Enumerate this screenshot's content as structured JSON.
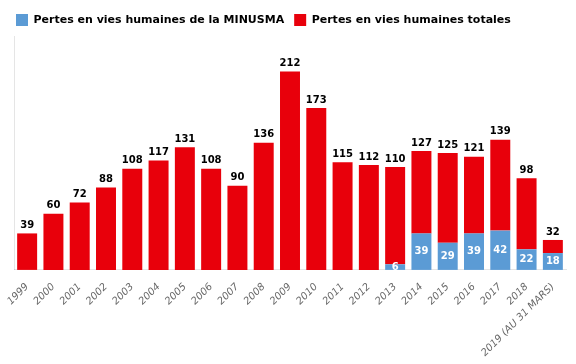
{
  "chart_data": {
    "type": "bar",
    "stacked": true,
    "categories": [
      "1999",
      "2000",
      "2001",
      "2002",
      "2003",
      "2004",
      "2005",
      "2006",
      "2007",
      "2008",
      "2009",
      "2010",
      "2011",
      "2012",
      "2013",
      "2014",
      "2015",
      "2016",
      "2017",
      "2018",
      "2019 (AU 31 MARS)"
    ],
    "series": [
      {
        "name": "Pertes en vies humaines de la MINUSMA",
        "color": "#5b9bd5",
        "values": [
          0,
          0,
          0,
          0,
          0,
          0,
          0,
          0,
          0,
          0,
          0,
          0,
          0,
          0,
          6,
          39,
          29,
          39,
          42,
          22,
          18
        ],
        "value_labels": [
          null,
          null,
          null,
          null,
          null,
          null,
          null,
          null,
          null,
          null,
          null,
          null,
          null,
          null,
          "6",
          "39",
          "29",
          "39",
          "42",
          "22",
          "18"
        ]
      },
      {
        "name": "Pertes en vies humaines totales",
        "color": "#e8000b",
        "values": [
          39,
          60,
          72,
          88,
          108,
          117,
          131,
          108,
          90,
          136,
          212,
          173,
          115,
          112,
          104,
          88,
          96,
          82,
          97,
          76,
          14
        ]
      }
    ],
    "totals": [
      39,
      60,
      72,
      88,
      108,
      117,
      131,
      108,
      90,
      136,
      212,
      173,
      115,
      112,
      110,
      127,
      125,
      121,
      139,
      98,
      32
    ],
    "data_labels": true,
    "ylim": [
      0,
      250
    ],
    "tick_labels": "x",
    "grid": false,
    "legend": "upper left"
  }
}
